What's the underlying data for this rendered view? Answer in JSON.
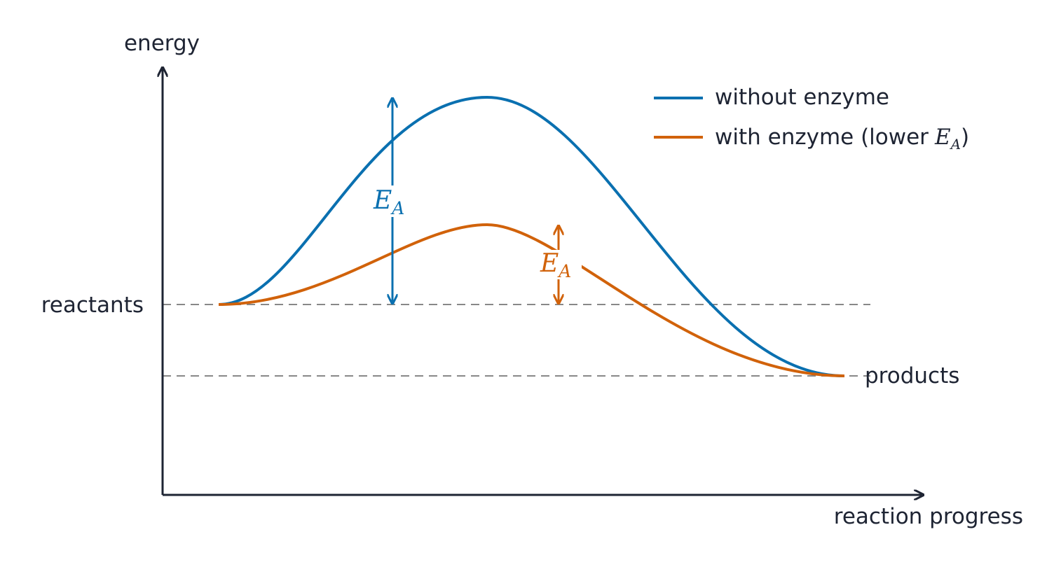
{
  "axes": {
    "y_label": "energy",
    "x_label": "reaction progress"
  },
  "levels": {
    "reactants": "reactants",
    "products": "products"
  },
  "legend": {
    "without_enzyme": "without enzyme",
    "with_enzyme": {
      "before": "with enzyme (lower",
      "symbol": "E",
      "subscript": "A",
      "after": ")"
    }
  },
  "annotations": {
    "blue": {
      "symbol": "E",
      "subscript": "A"
    },
    "orange": {
      "symbol": "E",
      "subscript": "A"
    }
  }
}
